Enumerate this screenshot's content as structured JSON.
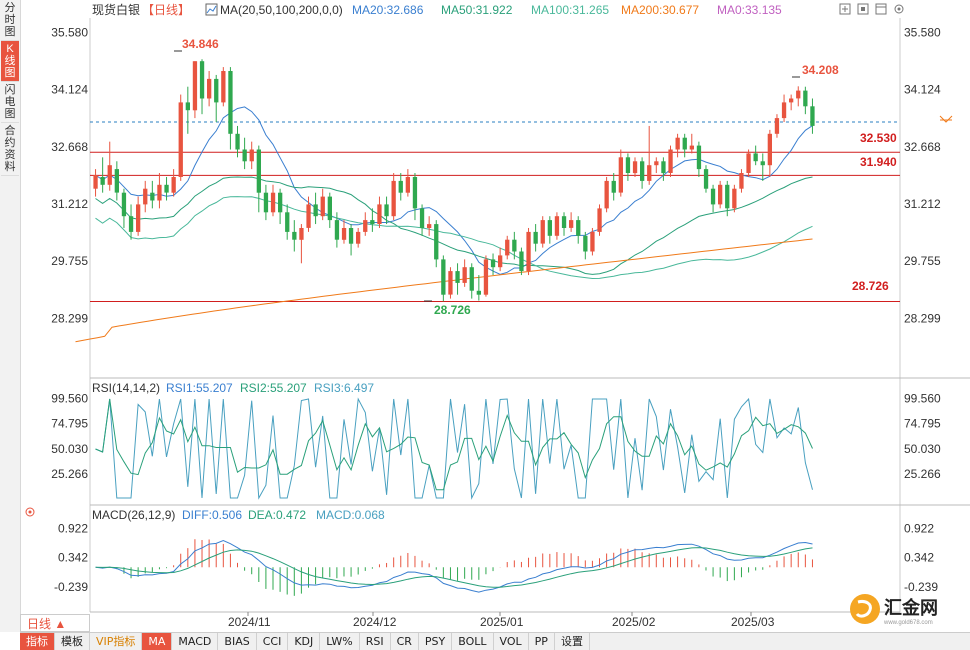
{
  "side_tabs": [
    "分时图",
    "K线图",
    "闪电图",
    "合约资料"
  ],
  "header": {
    "symbol": "现货白银",
    "period_tag": "【日线】",
    "ma_label": "MA(20,50,100,200,0,0)",
    "ma20": "MA20:32.686",
    "ma50": "MA50:31.922",
    "ma100": "MA100:31.265",
    "ma200": "MA200:30.677",
    "ma0": "MA0:33.135"
  },
  "price_axis": [
    "35.580",
    "34.124",
    "32.668",
    "31.212",
    "29.755",
    "28.299"
  ],
  "annotations": {
    "high": "34.846",
    "recent_high": "34.208",
    "low": "28.726",
    "level1": "32.530",
    "level2": "31.940",
    "level3": "28.726"
  },
  "rsi": {
    "label": "RSI(14,14,2)",
    "rsi1": "RSI1:55.207",
    "rsi2": "RSI2:55.207",
    "rsi3": "RSI3:6.497",
    "axis": [
      "99.560",
      "74.795",
      "50.030",
      "25.266"
    ]
  },
  "macd": {
    "label": "MACD(26,12,9)",
    "diff": "DIFF:0.506",
    "dea": "DEA:0.472",
    "macd": "MACD:0.068",
    "axis": [
      "0.922",
      "0.342",
      "-0.239"
    ]
  },
  "x_axis": [
    "2024/11",
    "2024/12",
    "2025/01",
    "2025/02",
    "2025/03"
  ],
  "period_selector": "日线 ▲",
  "bottom_bar": [
    "指标",
    "模板",
    "VIP指标",
    "MA",
    "MACD",
    "BIAS",
    "CCI",
    "KDJ",
    "LW%",
    "RSI",
    "CR",
    "PSY",
    "BOLL",
    "VOL",
    "PP",
    "设置"
  ],
  "logo_text": "汇金网",
  "logo_url": "www.gold678.com",
  "colors": {
    "up": "#e8543f",
    "down": "#2fa84f",
    "ma20": "#3a7fd0",
    "ma50": "#2aa07a",
    "ma100": "#49b89a",
    "ma200": "#f07a1a",
    "ma0": "#c060c0",
    "level": "#d11e1e"
  },
  "chart_data": {
    "type": "candlestick",
    "title": "现货白银 日线",
    "y_range": [
      28.0,
      35.9
    ],
    "candles": [
      [
        31.6,
        31.95,
        31.4,
        32.1
      ],
      [
        31.9,
        31.7,
        31.5,
        32.4
      ],
      [
        31.7,
        32.2,
        31.55,
        32.8
      ],
      [
        32.1,
        31.5,
        31.3,
        32.3
      ],
      [
        31.5,
        30.9,
        30.6,
        31.6
      ],
      [
        30.9,
        30.5,
        30.3,
        31.2
      ],
      [
        30.5,
        31.2,
        30.4,
        31.4
      ],
      [
        31.2,
        31.6,
        31.0,
        31.8
      ],
      [
        31.5,
        31.3,
        31.1,
        31.8
      ],
      [
        31.3,
        31.7,
        31.1,
        32.0
      ],
      [
        31.7,
        31.5,
        31.3,
        31.9
      ],
      [
        31.5,
        31.9,
        31.4,
        32.1
      ],
      [
        31.9,
        33.8,
        31.8,
        34.0
      ],
      [
        33.8,
        33.6,
        33.0,
        34.2
      ],
      [
        33.6,
        34.85,
        33.4,
        34.85
      ],
      [
        34.85,
        33.9,
        33.5,
        34.9
      ],
      [
        33.9,
        34.4,
        33.7,
        34.6
      ],
      [
        34.4,
        33.8,
        33.3,
        34.5
      ],
      [
        33.8,
        34.6,
        33.7,
        34.7
      ],
      [
        34.6,
        33.0,
        32.6,
        34.7
      ],
      [
        33.0,
        32.6,
        32.4,
        33.2
      ],
      [
        32.6,
        32.3,
        32.1,
        32.9
      ],
      [
        32.3,
        32.6,
        32.1,
        32.8
      ],
      [
        32.6,
        31.5,
        31.0,
        32.7
      ],
      [
        31.5,
        31.0,
        30.8,
        31.7
      ],
      [
        31.0,
        31.5,
        30.9,
        31.7
      ],
      [
        31.5,
        31.0,
        30.7,
        31.6
      ],
      [
        31.0,
        30.5,
        30.3,
        31.2
      ],
      [
        30.5,
        30.3,
        30.0,
        30.8
      ],
      [
        30.3,
        30.6,
        29.7,
        30.7
      ],
      [
        30.6,
        31.2,
        30.5,
        31.4
      ],
      [
        31.2,
        30.9,
        30.7,
        31.5
      ],
      [
        30.9,
        31.4,
        30.8,
        31.6
      ],
      [
        31.4,
        30.8,
        30.6,
        31.5
      ],
      [
        30.8,
        30.3,
        30.1,
        31.0
      ],
      [
        30.3,
        30.6,
        30.2,
        30.8
      ],
      [
        30.6,
        30.2,
        29.9,
        30.7
      ],
      [
        30.2,
        30.5,
        30.1,
        30.6
      ],
      [
        30.5,
        30.8,
        30.4,
        31.0
      ],
      [
        30.8,
        30.7,
        30.5,
        31.1
      ],
      [
        30.7,
        31.2,
        30.6,
        31.4
      ],
      [
        31.2,
        30.9,
        30.7,
        31.4
      ],
      [
        30.9,
        31.8,
        30.8,
        32.0
      ],
      [
        31.8,
        31.5,
        31.3,
        32.0
      ],
      [
        31.5,
        31.9,
        31.4,
        32.1
      ],
      [
        31.9,
        31.1,
        30.8,
        32.0
      ],
      [
        31.1,
        30.6,
        30.4,
        31.2
      ],
      [
        30.6,
        30.7,
        30.4,
        30.9
      ],
      [
        30.7,
        29.8,
        29.6,
        30.8
      ],
      [
        29.8,
        28.9,
        28.73,
        29.9
      ],
      [
        28.9,
        29.5,
        28.8,
        29.6
      ],
      [
        29.5,
        29.2,
        28.9,
        29.7
      ],
      [
        29.2,
        29.6,
        29.1,
        29.8
      ],
      [
        29.6,
        29.0,
        28.8,
        29.7
      ],
      [
        29.0,
        28.9,
        28.75,
        29.4
      ],
      [
        28.9,
        29.8,
        28.85,
        29.9
      ],
      [
        29.8,
        29.6,
        29.4,
        29.95
      ],
      [
        29.6,
        29.9,
        29.5,
        30.1
      ],
      [
        29.9,
        30.3,
        29.8,
        30.4
      ],
      [
        30.3,
        30.0,
        29.8,
        30.5
      ],
      [
        30.0,
        29.5,
        29.4,
        30.1
      ],
      [
        29.5,
        30.5,
        29.4,
        30.6
      ],
      [
        30.5,
        30.2,
        30.0,
        30.7
      ],
      [
        30.2,
        30.8,
        30.1,
        30.9
      ],
      [
        30.8,
        30.4,
        30.2,
        30.9
      ],
      [
        30.4,
        30.9,
        30.3,
        31.0
      ],
      [
        30.9,
        30.6,
        30.4,
        31.0
      ],
      [
        30.6,
        30.8,
        30.5,
        31.0
      ],
      [
        30.8,
        30.4,
        30.2,
        30.9
      ],
      [
        30.4,
        30.0,
        29.8,
        30.5
      ],
      [
        30.0,
        30.5,
        29.9,
        30.6
      ],
      [
        30.5,
        31.1,
        30.4,
        31.2
      ],
      [
        31.1,
        31.8,
        31.0,
        31.9
      ],
      [
        31.8,
        31.5,
        31.3,
        32.0
      ],
      [
        31.5,
        32.4,
        31.4,
        32.6
      ],
      [
        32.4,
        32.0,
        31.8,
        32.5
      ],
      [
        32.0,
        32.3,
        31.9,
        32.4
      ],
      [
        32.3,
        31.8,
        31.6,
        32.4
      ],
      [
        31.8,
        32.2,
        31.7,
        33.2
      ],
      [
        32.2,
        32.3,
        32.0,
        32.4
      ],
      [
        32.3,
        32.0,
        31.8,
        32.4
      ],
      [
        32.0,
        32.6,
        31.9,
        32.7
      ],
      [
        32.6,
        32.9,
        32.4,
        33.0
      ],
      [
        32.9,
        32.6,
        32.4,
        33.0
      ],
      [
        32.6,
        32.7,
        32.5,
        33.0
      ],
      [
        32.7,
        32.1,
        31.9,
        32.8
      ],
      [
        32.1,
        31.6,
        31.5,
        32.2
      ],
      [
        31.6,
        31.2,
        31.0,
        31.7
      ],
      [
        31.2,
        31.7,
        31.1,
        31.8
      ],
      [
        31.7,
        31.1,
        30.9,
        31.8
      ],
      [
        31.1,
        31.6,
        31.0,
        31.7
      ],
      [
        31.6,
        32.0,
        31.5,
        32.1
      ],
      [
        32.0,
        32.5,
        31.9,
        32.6
      ],
      [
        32.5,
        32.3,
        32.2,
        32.7
      ],
      [
        32.3,
        32.2,
        31.8,
        32.5
      ],
      [
        32.2,
        33.0,
        31.9,
        33.1
      ],
      [
        33.0,
        33.4,
        32.9,
        33.5
      ],
      [
        33.4,
        33.8,
        33.3,
        34.0
      ],
      [
        33.8,
        33.9,
        33.6,
        34.0
      ],
      [
        33.9,
        34.1,
        33.7,
        34.21
      ],
      [
        34.1,
        33.7,
        33.5,
        34.2
      ],
      [
        33.7,
        33.2,
        33.0,
        33.9
      ]
    ],
    "levels": [
      32.53,
      31.94,
      28.726
    ],
    "price_ticks": [
      35.58,
      34.124,
      32.668,
      31.212,
      29.755,
      28.299
    ]
  }
}
